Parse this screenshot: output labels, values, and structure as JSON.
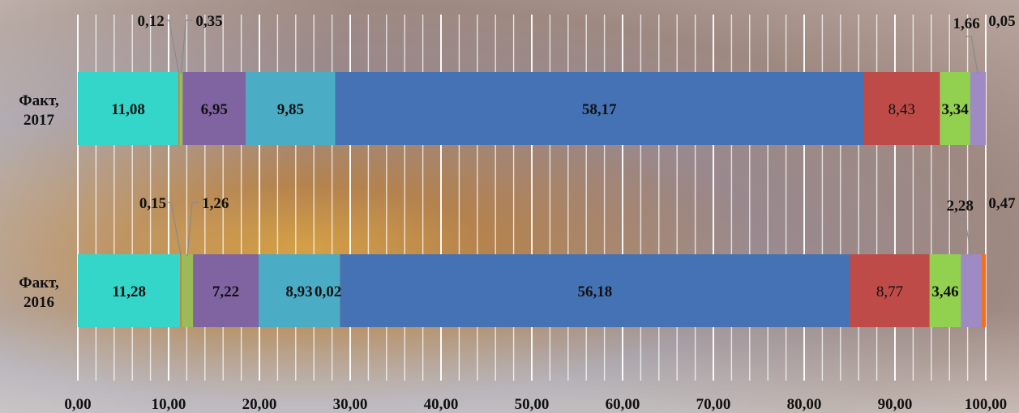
{
  "chart_data": {
    "type": "bar",
    "orientation": "horizontal",
    "stacked": true,
    "categories": [
      "Факт, 2017",
      "Факт, 2016"
    ],
    "category_lines": [
      [
        "Факт,",
        "2017"
      ],
      [
        "Факт,",
        "2016"
      ]
    ],
    "xlim": [
      0,
      100
    ],
    "x_ticks": [
      "0,00",
      "10,00",
      "20,00",
      "30,00",
      "40,00",
      "50,00",
      "60,00",
      "70,00",
      "80,00",
      "90,00",
      "100,00"
    ],
    "grid": true,
    "legend": "none",
    "rows": [
      {
        "category": "Факт, 2017",
        "segments": [
          {
            "value": 11.08,
            "label": "11,08",
            "color": "#33d6c8",
            "label_pos": "inside"
          },
          {
            "value": 0.12,
            "label": "0,12",
            "color": "#d97a2b",
            "label_pos": "callout-left"
          },
          {
            "value": 0.35,
            "label": "0,35",
            "color": "#9bbb59",
            "label_pos": "callout-right"
          },
          {
            "value": 6.95,
            "label": "6,95",
            "color": "#8064a2",
            "label_pos": "inside"
          },
          {
            "value": 9.85,
            "label": "9,85",
            "color": "#4bacc6",
            "label_pos": "inside"
          },
          {
            "value": 58.17,
            "label": "58,17",
            "color": "#4472b4",
            "label_pos": "inside"
          },
          {
            "value": 8.43,
            "label": "8,43",
            "color": "#be4b48",
            "label_pos": "inside-normal"
          },
          {
            "value": 3.34,
            "label": "3,34",
            "color": "#92d050",
            "label_pos": "inside"
          },
          {
            "value": 1.66,
            "label": "1,66",
            "color": "#9e8bc3",
            "label_pos": "callout-top"
          },
          {
            "value": 0.05,
            "label": "0,05",
            "color": "#f07020",
            "label_pos": "callout-right"
          }
        ]
      },
      {
        "category": "Факт, 2016",
        "segments": [
          {
            "value": 11.28,
            "label": "11,28",
            "color": "#33d6c8",
            "label_pos": "inside"
          },
          {
            "value": 0.15,
            "label": "0,15",
            "color": "#d97a2b",
            "label_pos": "callout-left"
          },
          {
            "value": 1.26,
            "label": "1,26",
            "color": "#9bbb59",
            "label_pos": "callout-right"
          },
          {
            "value": 7.22,
            "label": "7,22",
            "color": "#8064a2",
            "label_pos": "inside"
          },
          {
            "value": 8.93,
            "label": "8,93",
            "color": "#4bacc6",
            "label_pos": "inside"
          },
          {
            "value": 0.02,
            "label": "0,02",
            "color": "#c9b34a",
            "label_pos": "after"
          },
          {
            "value": 56.18,
            "label": "56,18",
            "color": "#4472b4",
            "label_pos": "inside"
          },
          {
            "value": 8.77,
            "label": "8,77",
            "color": "#be4b48",
            "label_pos": "inside-normal"
          },
          {
            "value": 3.46,
            "label": "3,46",
            "color": "#92d050",
            "label_pos": "inside"
          },
          {
            "value": 2.28,
            "label": "2,28",
            "color": "#9e8bc3",
            "label_pos": "callout-top"
          },
          {
            "value": 0.47,
            "label": "0,47",
            "color": "#f07020",
            "label_pos": "callout-right"
          }
        ]
      }
    ]
  }
}
